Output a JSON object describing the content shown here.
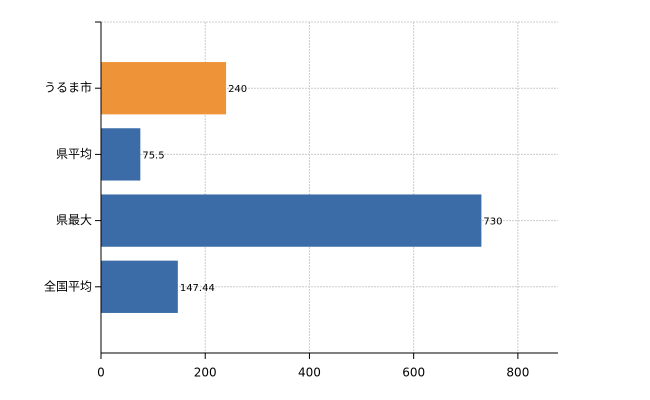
{
  "chart_data": {
    "type": "bar",
    "orientation": "horizontal",
    "categories": [
      "うるま市",
      "県平均",
      "県最大",
      "全国平均"
    ],
    "values": [
      240,
      75.5,
      730,
      147.44
    ],
    "colors": [
      "#ee9338",
      "#3b6ca8",
      "#3b6ca8",
      "#3b6ca8"
    ],
    "xlim": [
      0,
      877
    ],
    "xticks": [
      0,
      200,
      400,
      600,
      800
    ],
    "grid": true
  }
}
